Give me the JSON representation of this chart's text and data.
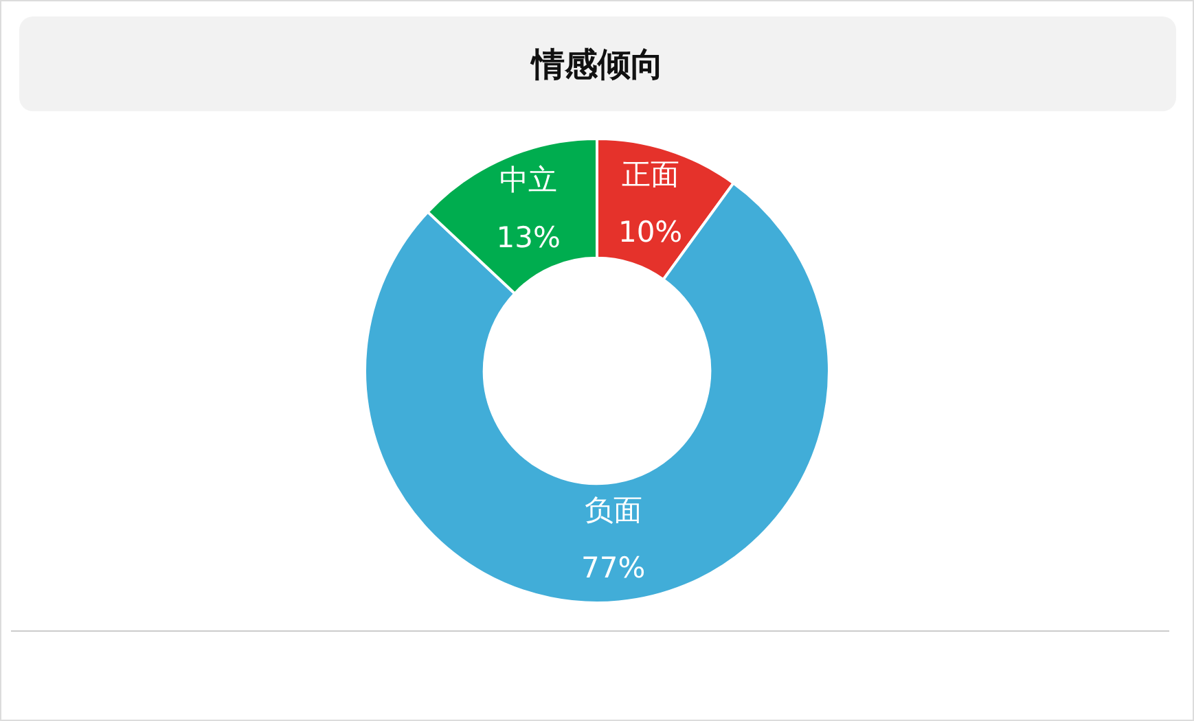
{
  "chart_data": {
    "type": "donut",
    "title": "情感倾向",
    "categories": [
      "正面",
      "负面",
      "中立"
    ],
    "values": [
      10,
      77,
      13
    ],
    "colors": [
      "#e5322b",
      "#41add8",
      "#00ad4f"
    ],
    "value_labels": [
      "10%",
      "77%",
      "13%"
    ]
  }
}
